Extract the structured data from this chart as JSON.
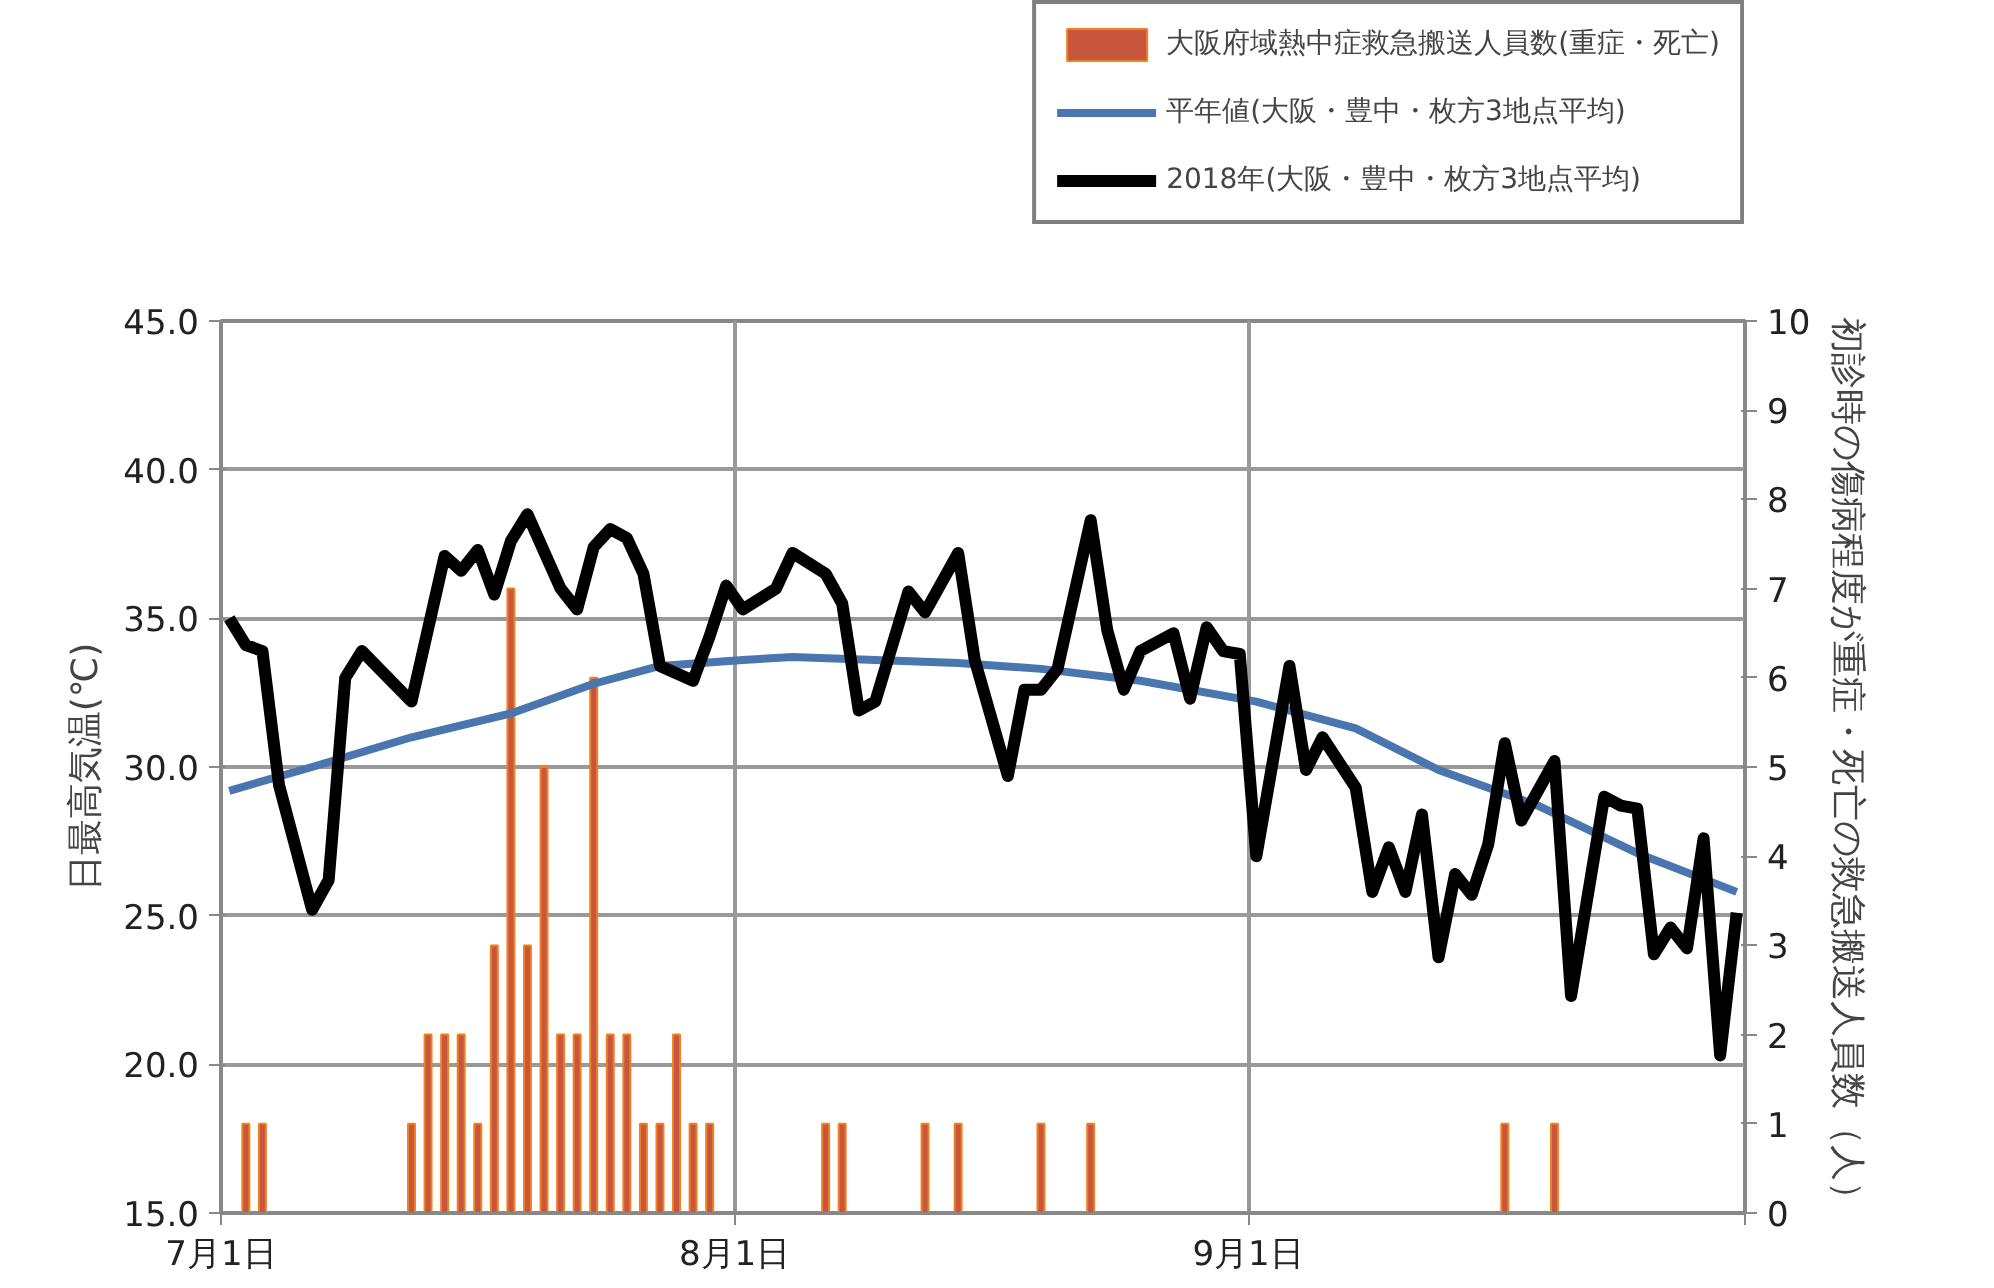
{
  "chart_data": {
    "type": "line",
    "ylabel": "日最高気温(℃)",
    "y2label": "初診時の傷病程度が重症・死亡の救急搬送人員数（人）",
    "xlim": [
      "2018-07-01",
      "2018-10-01"
    ],
    "xticks": [
      {
        "value": "2018-07-01",
        "label": "7月1日"
      },
      {
        "value": "2018-08-01",
        "label": "8月1日"
      },
      {
        "value": "2018-09-01",
        "label": "9月1日"
      },
      {
        "value": "2018-10-01",
        "label": null
      }
    ],
    "ylim": [
      15,
      45
    ],
    "yticks": [
      {
        "value": 15,
        "label": "15.0"
      },
      {
        "value": 20,
        "label": "20.0"
      },
      {
        "value": 25,
        "label": "25.0"
      },
      {
        "value": 30,
        "label": "30.0"
      },
      {
        "value": 35,
        "label": "35.0"
      },
      {
        "value": 40,
        "label": "40.0"
      },
      {
        "value": 45,
        "label": "45.0"
      }
    ],
    "y2lim": [
      0,
      10
    ],
    "y2ticks": [
      0,
      1,
      2,
      3,
      4,
      5,
      6,
      7,
      8,
      9,
      10
    ],
    "grid": true,
    "legend": "top right",
    "series": [
      {
        "name": "大阪府域熱中症救急搬送人員数(重症・死亡)",
        "type": "bar",
        "axis": "y2",
        "color": "#c8553d",
        "x": [
          "2018-07-02T12:00",
          "2018-07-03T12:00",
          "2018-07-12T12:00",
          "2018-07-13T12:00",
          "2018-07-14T12:00",
          "2018-07-15T12:00",
          "2018-07-16T12:00",
          "2018-07-17T12:00",
          "2018-07-18T12:00",
          "2018-07-19T12:00",
          "2018-07-20T12:00",
          "2018-07-21T12:00",
          "2018-07-22T12:00",
          "2018-07-23T12:00",
          "2018-07-24T12:00",
          "2018-07-25T12:00",
          "2018-07-26T12:00",
          "2018-07-27T12:00",
          "2018-07-28T12:00",
          "2018-07-29T12:00",
          "2018-07-30T12:00",
          "2018-08-06T12:00",
          "2018-08-07T12:00",
          "2018-08-12T12:00",
          "2018-08-14T12:00",
          "2018-08-19T12:00",
          "2018-08-22T12:00",
          "2018-09-16T12:00",
          "2018-09-19T12:00"
        ],
        "values": [
          1,
          1,
          1,
          2,
          2,
          2,
          1,
          3,
          7,
          3,
          5,
          2,
          2,
          6,
          2,
          2,
          1,
          1,
          2,
          1,
          1,
          1,
          1,
          1,
          1,
          1,
          1,
          1,
          1
        ]
      },
      {
        "name": "平年値(大阪・豊中・枚方3地点平均)",
        "color": "#4a76b0",
        "x": [
          "2018-07-01T12:00",
          "2018-07-06T12:00",
          "2018-07-12T12:00",
          "2018-07-18T12:00",
          "2018-07-23T12:00",
          "2018-07-27T12:00",
          "2018-08-01T12:00",
          "2018-08-04T12:00",
          "2018-08-14T12:00",
          "2018-08-19T12:00",
          "2018-08-25T12:00",
          "2018-09-01T12:00",
          "2018-09-07T12:00",
          "2018-09-12T12:00",
          "2018-09-18T12:00",
          "2018-09-24T12:00",
          "2018-09-30T12:00"
        ],
        "values": [
          29.2,
          30.0,
          31.0,
          31.8,
          32.8,
          33.4,
          33.6,
          33.7,
          33.5,
          33.3,
          32.9,
          32.2,
          31.3,
          29.9,
          28.7,
          27.1,
          25.8
        ]
      },
      {
        "name": "2018年(大阪・豊中・枚方3地点平均)",
        "color": "#000000",
        "x": [
          "2018-07-01T12:00",
          "2018-07-02T12:00",
          "2018-07-03T12:00",
          "2018-07-04T12:00",
          "2018-07-06T12:00",
          "2018-07-07T12:00",
          "2018-07-08T12:00",
          "2018-07-09T12:00",
          "2018-07-12T12:00",
          "2018-07-14T12:00",
          "2018-07-15T12:00",
          "2018-07-16T12:00",
          "2018-07-17T12:00",
          "2018-07-18T12:00",
          "2018-07-19T12:00",
          "2018-07-21T12:00",
          "2018-07-22T12:00",
          "2018-07-23T12:00",
          "2018-07-24T12:00",
          "2018-07-25T12:00",
          "2018-07-26T12:00",
          "2018-07-27T12:00",
          "2018-07-29T12:00",
          "2018-07-30T12:00",
          "2018-07-31T12:00",
          "2018-08-01T12:00",
          "2018-08-03T12:00",
          "2018-08-04T12:00",
          "2018-08-06T12:00",
          "2018-08-07T12:00",
          "2018-08-08T12:00",
          "2018-08-09T12:00",
          "2018-08-11T12:00",
          "2018-08-12T12:00",
          "2018-08-14T12:00",
          "2018-08-15T12:00",
          "2018-08-17T12:00",
          "2018-08-18T12:00",
          "2018-08-19T12:00",
          "2018-08-20T12:00",
          "2018-08-22T12:00",
          "2018-08-23T12:00",
          "2018-08-24T12:00",
          "2018-08-25T12:00",
          "2018-08-27T12:00",
          "2018-08-28T12:00",
          "2018-08-29T12:00",
          "2018-08-30T12:00",
          "2018-08-31T12:00",
          "2018-09-01T12:00",
          "2018-09-03T12:00",
          "2018-09-04T12:00",
          "2018-09-05T12:00",
          "2018-09-07T12:00",
          "2018-09-08T12:00",
          "2018-09-09T12:00",
          "2018-09-10T12:00",
          "2018-09-11T12:00",
          "2018-09-12T12:00",
          "2018-09-13T12:00",
          "2018-09-14T12:00",
          "2018-09-15T12:00",
          "2018-09-16T12:00",
          "2018-09-17T12:00",
          "2018-09-19T12:00",
          "2018-09-20T12:00",
          "2018-09-22T12:00",
          "2018-09-23T12:00",
          "2018-09-24T12:00",
          "2018-09-25T12:00",
          "2018-09-26T12:00",
          "2018-09-27T12:00",
          "2018-09-28T12:00",
          "2018-09-29T12:00",
          "2018-09-30T12:00"
        ],
        "values": [
          35.0,
          34.1,
          33.9,
          29.4,
          25.2,
          26.2,
          33.0,
          33.9,
          32.2,
          37.1,
          36.6,
          37.3,
          35.8,
          37.6,
          38.5,
          36.0,
          35.3,
          37.4,
          38.0,
          37.7,
          36.5,
          33.4,
          32.9,
          34.4,
          36.1,
          35.3,
          36.0,
          37.2,
          36.5,
          35.5,
          31.9,
          32.2,
          35.9,
          35.2,
          37.2,
          33.6,
          29.7,
          32.6,
          32.6,
          33.3,
          38.3,
          34.6,
          32.6,
          33.9,
          34.5,
          32.3,
          34.7,
          33.9,
          33.8,
          27.0,
          33.4,
          29.9,
          31.0,
          29.3,
          25.8,
          27.3,
          25.8,
          28.4,
          23.6,
          26.4,
          25.7,
          27.4,
          30.8,
          28.2,
          30.2,
          22.3,
          29.0,
          28.7,
          28.6,
          23.7,
          24.6,
          23.9,
          27.6,
          20.3,
          25.1
        ]
      }
    ]
  }
}
